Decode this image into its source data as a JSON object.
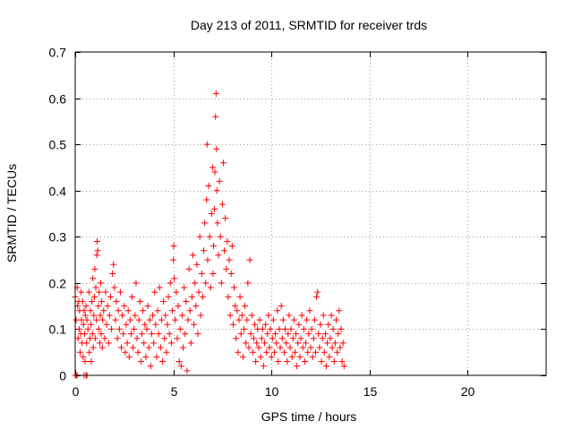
{
  "chart_data": {
    "type": "scatter",
    "title": "Day 213 of 2011, SRMTID for receiver trds",
    "xlabel": "GPS time / hours",
    "ylabel": "SRMTID / TECUs",
    "xlim": [
      0,
      24
    ],
    "ylim": [
      0,
      0.7
    ],
    "xticks": [
      "0",
      "5",
      "10",
      "15",
      "20"
    ],
    "xtick_values": [
      0,
      5,
      10,
      15,
      20
    ],
    "yticks": [
      "0",
      "0.1",
      "0.2",
      "0.3",
      "0.4",
      "0.5",
      "0.6",
      "0.7"
    ],
    "ytick_values": [
      0,
      0.1,
      0.2,
      0.3,
      0.4,
      0.5,
      0.6,
      0.7
    ],
    "grid": true,
    "legend": "none",
    "marker": "+",
    "point_color": "#ff0000",
    "series": [
      {
        "points": [
          [
            0.0,
            0.0
          ],
          [
            0.05,
            0.0
          ],
          [
            0.1,
            0.0
          ],
          [
            0.45,
            0.0
          ],
          [
            0.55,
            0.0
          ],
          [
            0.6,
            0.0
          ],
          [
            0.0,
            0.17
          ],
          [
            0.05,
            0.12
          ],
          [
            0.1,
            0.19
          ],
          [
            0.12,
            0.15
          ],
          [
            0.15,
            0.08
          ],
          [
            0.18,
            0.16
          ],
          [
            0.2,
            0.1
          ],
          [
            0.22,
            0.14
          ],
          [
            0.25,
            0.05
          ],
          [
            0.28,
            0.09
          ],
          [
            0.3,
            0.18
          ],
          [
            0.32,
            0.12
          ],
          [
            0.35,
            0.07
          ],
          [
            0.38,
            0.16
          ],
          [
            0.4,
            0.04
          ],
          [
            0.42,
            0.11
          ],
          [
            0.45,
            0.14
          ],
          [
            0.48,
            0.09
          ],
          [
            0.5,
            0.03
          ],
          [
            0.52,
            0.13
          ],
          [
            0.55,
            0.15
          ],
          [
            0.58,
            0.07
          ],
          [
            0.6,
            0.12
          ],
          [
            0.65,
            0.1
          ],
          [
            0.7,
            0.18
          ],
          [
            0.72,
            0.05
          ],
          [
            0.75,
            0.08
          ],
          [
            0.78,
            0.14
          ],
          [
            0.8,
            0.11
          ],
          [
            0.82,
            0.03
          ],
          [
            0.85,
            0.16
          ],
          [
            0.88,
            0.09
          ],
          [
            0.9,
            0.21
          ],
          [
            0.92,
            0.06
          ],
          [
            0.95,
            0.13
          ],
          [
            0.98,
            0.17
          ],
          [
            1.0,
            0.23
          ],
          [
            1.02,
            0.08
          ],
          [
            1.05,
            0.19
          ],
          [
            1.08,
            0.12
          ],
          [
            1.1,
            0.26
          ],
          [
            1.12,
            0.29
          ],
          [
            1.15,
            0.27
          ],
          [
            1.18,
            0.15
          ],
          [
            1.2,
            0.1
          ],
          [
            1.22,
            0.18
          ],
          [
            1.25,
            0.07
          ],
          [
            1.28,
            0.13
          ],
          [
            1.3,
            0.2
          ],
          [
            1.32,
            0.09
          ],
          [
            1.35,
            0.16
          ],
          [
            1.38,
            0.06
          ],
          [
            1.4,
            0.12
          ],
          [
            1.45,
            0.14
          ],
          [
            1.5,
            0.08
          ],
          [
            1.55,
            0.18
          ],
          [
            1.6,
            0.11
          ],
          [
            1.65,
            0.15
          ],
          [
            1.7,
            0.07
          ],
          [
            1.75,
            0.13
          ],
          [
            1.8,
            0.17
          ],
          [
            1.85,
            0.1
          ],
          [
            1.9,
            0.22
          ],
          [
            1.95,
            0.24
          ],
          [
            2.0,
            0.19
          ],
          [
            2.05,
            0.12
          ],
          [
            2.1,
            0.16
          ],
          [
            2.15,
            0.08
          ],
          [
            2.2,
            0.14
          ],
          [
            2.25,
            0.1
          ],
          [
            2.3,
            0.18
          ],
          [
            2.35,
            0.06
          ],
          [
            2.4,
            0.13
          ],
          [
            2.45,
            0.09
          ],
          [
            2.5,
            0.15
          ],
          [
            2.55,
            0.05
          ],
          [
            2.6,
            0.11
          ],
          [
            2.65,
            0.07
          ],
          [
            2.7,
            0.14
          ],
          [
            2.75,
            0.04
          ],
          [
            2.8,
            0.12
          ],
          [
            2.85,
            0.09
          ],
          [
            2.9,
            0.17
          ],
          [
            2.95,
            0.06
          ],
          [
            3.0,
            0.1
          ],
          [
            3.05,
            0.13
          ],
          [
            3.1,
            0.2
          ],
          [
            3.15,
            0.08
          ],
          [
            3.2,
            0.05
          ],
          [
            3.25,
            0.12
          ],
          [
            3.3,
            0.16
          ],
          [
            3.35,
            0.03
          ],
          [
            3.4,
            0.09
          ],
          [
            3.45,
            0.14
          ],
          [
            3.5,
            0.07
          ],
          [
            3.55,
            0.11
          ],
          [
            3.6,
            0.04
          ],
          [
            3.65,
            0.1
          ],
          [
            3.7,
            0.15
          ],
          [
            3.75,
            0.06
          ],
          [
            3.8,
            0.12
          ],
          [
            3.85,
            0.02
          ],
          [
            3.9,
            0.09
          ],
          [
            3.95,
            0.13
          ],
          [
            4.0,
            0.07
          ],
          [
            4.05,
            0.18
          ],
          [
            4.1,
            0.11
          ],
          [
            4.15,
            0.04
          ],
          [
            4.2,
            0.14
          ],
          [
            4.25,
            0.09
          ],
          [
            4.3,
            0.19
          ],
          [
            4.35,
            0.06
          ],
          [
            4.4,
            0.12
          ],
          [
            4.45,
            0.03
          ],
          [
            4.5,
            0.16
          ],
          [
            4.55,
            0.08
          ],
          [
            4.6,
            0.13
          ],
          [
            4.65,
            0.05
          ],
          [
            4.7,
            0.11
          ],
          [
            4.75,
            0.17
          ],
          [
            4.8,
            0.09
          ],
          [
            4.85,
            0.2
          ],
          [
            4.9,
            0.07
          ],
          [
            4.95,
            0.14
          ],
          [
            5.0,
            0.25
          ],
          [
            5.02,
            0.28
          ],
          [
            5.05,
            0.21
          ],
          [
            5.1,
            0.12
          ],
          [
            5.15,
            0.18
          ],
          [
            5.2,
            0.08
          ],
          [
            5.25,
            0.15
          ],
          [
            5.3,
            0.03
          ],
          [
            5.35,
            0.1
          ],
          [
            5.4,
            0.02
          ],
          [
            5.45,
            0.13
          ],
          [
            5.5,
            0.06
          ],
          [
            5.55,
            0.19
          ],
          [
            5.6,
            0.09
          ],
          [
            5.65,
            0.16
          ],
          [
            5.7,
            0.01
          ],
          [
            5.75,
            0.12
          ],
          [
            5.8,
            0.23
          ],
          [
            5.85,
            0.14
          ],
          [
            5.9,
            0.07
          ],
          [
            5.95,
            0.17
          ],
          [
            6.0,
            0.26
          ],
          [
            6.05,
            0.11
          ],
          [
            6.1,
            0.2
          ],
          [
            6.15,
            0.15
          ],
          [
            6.2,
            0.24
          ],
          [
            6.25,
            0.09
          ],
          [
            6.3,
            0.18
          ],
          [
            6.35,
            0.3
          ],
          [
            6.4,
            0.13
          ],
          [
            6.45,
            0.22
          ],
          [
            6.5,
            0.17
          ],
          [
            6.55,
            0.27
          ],
          [
            6.6,
            0.33
          ],
          [
            6.65,
            0.2
          ],
          [
            6.7,
            0.38
          ],
          [
            6.72,
            0.5
          ],
          [
            6.75,
            0.25
          ],
          [
            6.8,
            0.41
          ],
          [
            6.85,
            0.3
          ],
          [
            6.9,
            0.19
          ],
          [
            6.95,
            0.35
          ],
          [
            7.0,
            0.45
          ],
          [
            7.02,
            0.22
          ],
          [
            7.05,
            0.28
          ],
          [
            7.1,
            0.36
          ],
          [
            7.12,
            0.44
          ],
          [
            7.15,
            0.56
          ],
          [
            7.18,
            0.61
          ],
          [
            7.2,
            0.49
          ],
          [
            7.22,
            0.4
          ],
          [
            7.25,
            0.33
          ],
          [
            7.3,
            0.26
          ],
          [
            7.35,
            0.42
          ],
          [
            7.4,
            0.3
          ],
          [
            7.45,
            0.2
          ],
          [
            7.5,
            0.37
          ],
          [
            7.55,
            0.46
          ],
          [
            7.6,
            0.27
          ],
          [
            7.65,
            0.34
          ],
          [
            7.7,
            0.23
          ],
          [
            7.75,
            0.29
          ],
          [
            7.8,
            0.17
          ],
          [
            7.85,
            0.25
          ],
          [
            7.9,
            0.13
          ],
          [
            7.95,
            0.22
          ],
          [
            8.0,
            0.28
          ],
          [
            8.05,
            0.11
          ],
          [
            8.1,
            0.19
          ],
          [
            8.15,
            0.15
          ],
          [
            8.2,
            0.08
          ],
          [
            8.25,
            0.14
          ],
          [
            8.3,
            0.05
          ],
          [
            8.35,
            0.12
          ],
          [
            8.4,
            0.17
          ],
          [
            8.45,
            0.09
          ],
          [
            8.5,
            0.13
          ],
          [
            8.55,
            0.04
          ],
          [
            8.6,
            0.1
          ],
          [
            8.65,
            0.15
          ],
          [
            8.7,
            0.07
          ],
          [
            8.75,
            0.12
          ],
          [
            8.8,
            0.2
          ],
          [
            8.85,
            0.06
          ],
          [
            8.9,
            0.25
          ],
          [
            8.95,
            0.09
          ],
          [
            9.0,
            0.13
          ],
          [
            9.05,
            0.05
          ],
          [
            9.1,
            0.08
          ],
          [
            9.15,
            0.11
          ],
          [
            9.2,
            0.03
          ],
          [
            9.25,
            0.07
          ],
          [
            9.3,
            0.1
          ],
          [
            9.35,
            0.06
          ],
          [
            9.4,
            0.12
          ],
          [
            9.45,
            0.04
          ],
          [
            9.5,
            0.08
          ],
          [
            9.55,
            0.1
          ],
          [
            9.6,
            0.02
          ],
          [
            9.65,
            0.07
          ],
          [
            9.7,
            0.11
          ],
          [
            9.75,
            0.05
          ],
          [
            9.8,
            0.09
          ],
          [
            9.85,
            0.13
          ],
          [
            9.9,
            0.06
          ],
          [
            9.95,
            0.1
          ],
          [
            10.0,
            0.04
          ],
          [
            10.05,
            0.08
          ],
          [
            10.1,
            0.12
          ],
          [
            10.15,
            0.05
          ],
          [
            10.2,
            0.09
          ],
          [
            10.25,
            0.07
          ],
          [
            10.3,
            0.14
          ],
          [
            10.35,
            0.03
          ],
          [
            10.4,
            0.1
          ],
          [
            10.45,
            0.06
          ],
          [
            10.5,
            0.15
          ],
          [
            10.55,
            0.08
          ],
          [
            10.6,
            0.12
          ],
          [
            10.65,
            0.05
          ],
          [
            10.7,
            0.1
          ],
          [
            10.75,
            0.07
          ],
          [
            10.8,
            0.03
          ],
          [
            10.85,
            0.09
          ],
          [
            10.9,
            0.13
          ],
          [
            10.95,
            0.06
          ],
          [
            11.0,
            0.1
          ],
          [
            11.05,
            0.04
          ],
          [
            11.1,
            0.08
          ],
          [
            11.15,
            0.12
          ],
          [
            11.2,
            0.05
          ],
          [
            11.25,
            0.09
          ],
          [
            11.3,
            0.02
          ],
          [
            11.35,
            0.07
          ],
          [
            11.4,
            0.11
          ],
          [
            11.45,
            0.04
          ],
          [
            11.5,
            0.08
          ],
          [
            11.55,
            0.13
          ],
          [
            11.6,
            0.06
          ],
          [
            11.65,
            0.1
          ],
          [
            11.7,
            0.03
          ],
          [
            11.75,
            0.07
          ],
          [
            11.8,
            0.12
          ],
          [
            11.85,
            0.05
          ],
          [
            11.9,
            0.09
          ],
          [
            11.95,
            0.14
          ],
          [
            12.0,
            0.06
          ],
          [
            12.05,
            0.1
          ],
          [
            12.1,
            0.04
          ],
          [
            12.15,
            0.08
          ],
          [
            12.2,
            0.12
          ],
          [
            12.25,
            0.05
          ],
          [
            12.3,
            0.17
          ],
          [
            12.35,
            0.18
          ],
          [
            12.4,
            0.09
          ],
          [
            12.45,
            0.06
          ],
          [
            12.5,
            0.11
          ],
          [
            12.55,
            0.03
          ],
          [
            12.6,
            0.08
          ],
          [
            12.65,
            0.13
          ],
          [
            12.7,
            0.05
          ],
          [
            12.75,
            0.09
          ],
          [
            12.8,
            0.02
          ],
          [
            12.85,
            0.07
          ],
          [
            12.9,
            0.11
          ],
          [
            12.95,
            0.04
          ],
          [
            13.0,
            0.08
          ],
          [
            13.05,
            0.13
          ],
          [
            13.1,
            0.06
          ],
          [
            13.15,
            0.1
          ],
          [
            13.2,
            0.03
          ],
          [
            13.25,
            0.07
          ],
          [
            13.3,
            0.12
          ],
          [
            13.35,
            0.05
          ],
          [
            13.4,
            0.09
          ],
          [
            13.45,
            0.14
          ],
          [
            13.5,
            0.06
          ],
          [
            13.55,
            0.1
          ],
          [
            13.6,
            0.03
          ],
          [
            13.65,
            0.07
          ],
          [
            13.7,
            0.02
          ]
        ]
      }
    ]
  }
}
